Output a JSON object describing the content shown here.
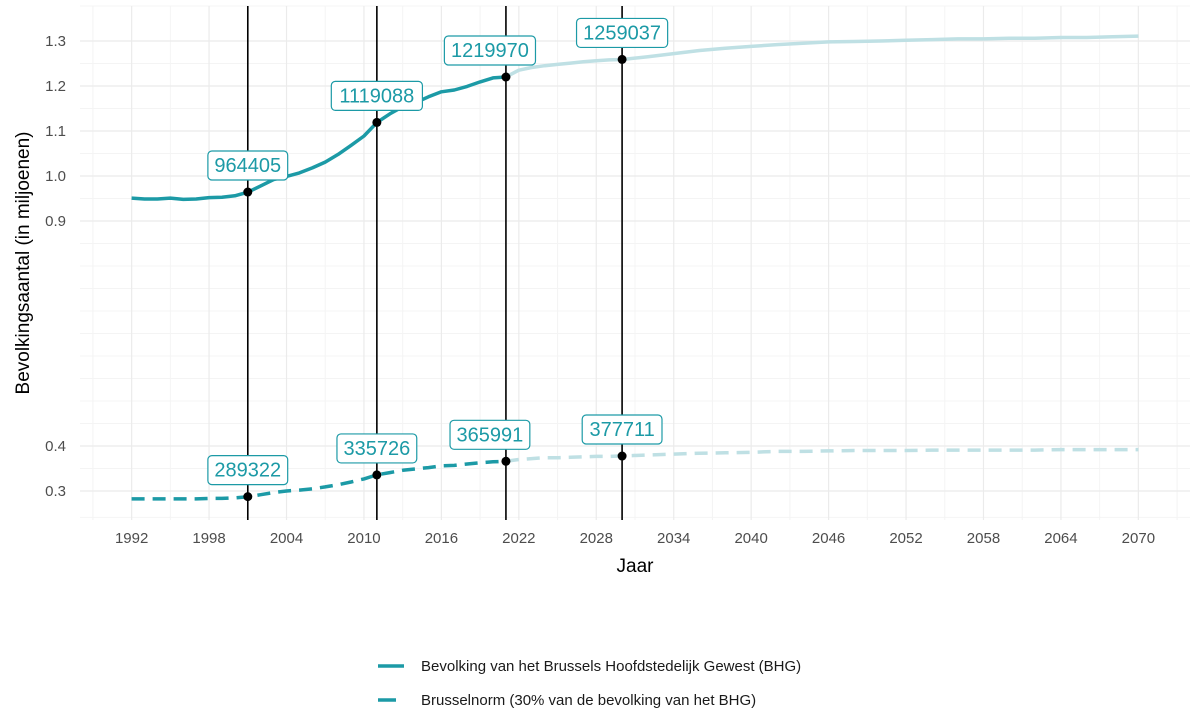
{
  "chart_data": {
    "type": "line",
    "xlabel": "Jaar",
    "ylabel": "Bevolkingsaantal (in miljoenen)",
    "xlim": [
      1988,
      2074
    ],
    "ylim": [
      0.245,
      1.35
    ],
    "x_ticks": [
      1992,
      1998,
      2004,
      2010,
      2016,
      2022,
      2028,
      2034,
      2040,
      2046,
      2052,
      2058,
      2064,
      2070
    ],
    "x_tick_labels": [
      "1992",
      "1998",
      "2004",
      "2010",
      "2016",
      "2022",
      "2028",
      "2034",
      "2040",
      "2046",
      "2052",
      "2058",
      "2064",
      "2070"
    ],
    "y_ticks": [
      0.3,
      0.4,
      0.9,
      1.0,
      1.1,
      1.2,
      1.3
    ],
    "y_tick_labels": [
      "0.3",
      "0.4",
      "0.9",
      "1.0",
      "1.1",
      "1.2",
      "1.3"
    ],
    "grid": true,
    "legend_position": "bottom",
    "projection_start": 2021,
    "colors": {
      "observed": "#1c9aa6",
      "projected": "#bfe0e4",
      "marker": "#000000",
      "vline": "#000000",
      "grid_major": "#ebebeb",
      "grid_minor": "#f4f4f4"
    },
    "series": [
      {
        "name": "Bevolking van het Brussels Hoofdstedelijk Gewest (BHG)",
        "style": "solid",
        "x": [
          1992,
          1993,
          1994,
          1995,
          1996,
          1997,
          1998,
          1999,
          2000,
          2001,
          2002,
          2003,
          2004,
          2005,
          2006,
          2007,
          2008,
          2009,
          2010,
          2011,
          2012,
          2013,
          2014,
          2015,
          2016,
          2017,
          2018,
          2019,
          2020,
          2021,
          2022,
          2023,
          2024,
          2025,
          2026,
          2027,
          2028,
          2029,
          2030,
          2032,
          2034,
          2036,
          2038,
          2040,
          2042,
          2044,
          2046,
          2048,
          2050,
          2052,
          2054,
          2056,
          2058,
          2060,
          2062,
          2064,
          2066,
          2068,
          2070
        ],
        "values": [
          0.951,
          0.949,
          0.949,
          0.951,
          0.948,
          0.949,
          0.952,
          0.953,
          0.956,
          0.964,
          0.978,
          0.992,
          0.999,
          1.007,
          1.018,
          1.031,
          1.048,
          1.068,
          1.089,
          1.119,
          1.138,
          1.154,
          1.163,
          1.176,
          1.187,
          1.191,
          1.199,
          1.209,
          1.218,
          1.22,
          1.235,
          1.241,
          1.245,
          1.248,
          1.251,
          1.254,
          1.256,
          1.258,
          1.259,
          1.265,
          1.272,
          1.279,
          1.284,
          1.288,
          1.292,
          1.295,
          1.298,
          1.299,
          1.3,
          1.301,
          1.302,
          1.303,
          1.303,
          1.304,
          1.304,
          1.305,
          1.305,
          1.306,
          1.307
        ]
      },
      {
        "name": "Brusselnorm (30% van de bevolking van het BHG)",
        "style": "dashed",
        "x": [
          1992,
          1993,
          1994,
          1995,
          1996,
          1997,
          1998,
          1999,
          2000,
          2001,
          2002,
          2003,
          2004,
          2005,
          2006,
          2007,
          2008,
          2009,
          2010,
          2011,
          2012,
          2013,
          2014,
          2015,
          2016,
          2017,
          2018,
          2019,
          2020,
          2021,
          2022,
          2023,
          2024,
          2025,
          2026,
          2027,
          2028,
          2029,
          2030,
          2032,
          2034,
          2036,
          2038,
          2040,
          2042,
          2044,
          2046,
          2048,
          2050,
          2052,
          2054,
          2056,
          2058,
          2060,
          2062,
          2064,
          2066,
          2068,
          2070
        ],
        "values": [
          0.285,
          0.285,
          0.285,
          0.285,
          0.285,
          0.285,
          0.286,
          0.286,
          0.287,
          0.289,
          0.293,
          0.297,
          0.3,
          0.302,
          0.305,
          0.309,
          0.314,
          0.32,
          0.327,
          0.336,
          0.341,
          0.346,
          0.349,
          0.352,
          0.356,
          0.357,
          0.36,
          0.363,
          0.365,
          0.366,
          0.37,
          0.372,
          0.374,
          0.374,
          0.375,
          0.376,
          0.377,
          0.377,
          0.378,
          0.38,
          0.382,
          0.384,
          0.385,
          0.386,
          0.388,
          0.388,
          0.389,
          0.39,
          0.39,
          0.39,
          0.391,
          0.391,
          0.391,
          0.391,
          0.391,
          0.392,
          0.392,
          0.392,
          0.392
        ]
      }
    ],
    "vlines": [
      2001,
      2011,
      2021,
      2030
    ],
    "markers": [
      {
        "x": 2001,
        "y": 0.964405,
        "label": "964405"
      },
      {
        "x": 2011,
        "y": 1.119088,
        "label": "1119088"
      },
      {
        "x": 2021,
        "y": 1.21997,
        "label": "1219970"
      },
      {
        "x": 2030,
        "y": 1.259037,
        "label": "1259037"
      },
      {
        "x": 2001,
        "y": 0.289322,
        "label": "289322"
      },
      {
        "x": 2011,
        "y": 0.335726,
        "label": "335726"
      },
      {
        "x": 2021,
        "y": 0.365991,
        "label": "365991"
      },
      {
        "x": 2030,
        "y": 0.377711,
        "label": "377711"
      }
    ]
  }
}
